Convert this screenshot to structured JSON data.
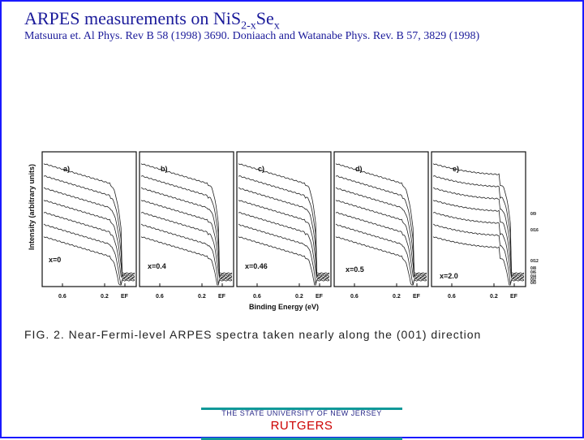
{
  "slide": {
    "title_main": "ARPES measurements on NiS",
    "title_sub1": "2-x",
    "title_mid": "Se",
    "title_sub2": "x",
    "citation": "Matsuura et. Al Phys. Rev B 58 (1998) 3690. Doniaach and Watanabe Phys. Rev. B 57, 3829 (1998)"
  },
  "figure": {
    "ylabel": "Intensity (arbitrary units)",
    "xlabel": "Binding Energy (eV)",
    "caption": "FIG. 2.  Near-Fermi-level ARPES spectra taken nearly along the (001) direction",
    "panels": [
      {
        "letter": "a)",
        "composition": "x=0"
      },
      {
        "letter": "b)",
        "composition": "x=0.4"
      },
      {
        "letter": "c)",
        "composition": "x=0.46"
      },
      {
        "letter": "d)",
        "composition": "x=0.5"
      },
      {
        "letter": "e)",
        "composition": "x=2.0"
      }
    ],
    "tick_labels": [
      "0.6",
      "0.2",
      "EF"
    ],
    "right_labels": [
      "0/9",
      "0/16",
      "0/12",
      "0/8",
      "0/6",
      "0/4",
      "0/2",
      "0/0"
    ],
    "curves_per_panel": 7
  },
  "logo": {
    "university": "THE STATE UNIVERSITY OF NEW JERSEY",
    "name": "RUTGERS"
  }
}
